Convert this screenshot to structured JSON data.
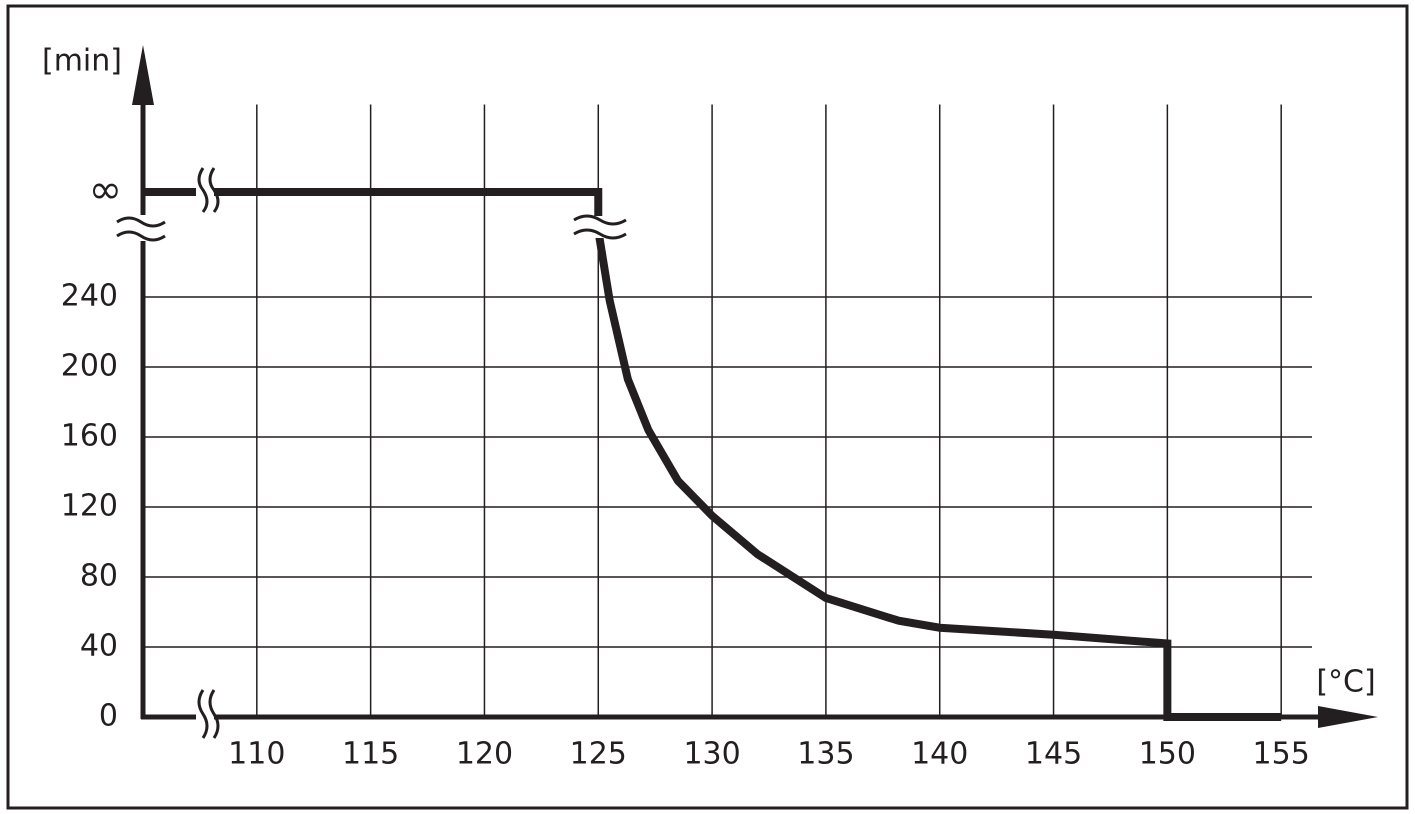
{
  "chart_data": {
    "type": "line",
    "y_label": "[min]",
    "x_label": "[°C]",
    "xlim": [
      105,
      160
    ],
    "ylim": [
      0,
      350
    ],
    "xticks": [
      110,
      115,
      120,
      125,
      130,
      135,
      140,
      145,
      150,
      155
    ],
    "yticks": [
      0,
      40,
      80,
      120,
      160,
      200,
      240,
      {
        "value": 300,
        "label": "∞"
      }
    ],
    "grid": true,
    "series": [
      {
        "color": "#231f20",
        "x": [
          105,
          125,
          125,
          125.5,
          126.3,
          127.2,
          128.5,
          130,
          132,
          135,
          138.2,
          140,
          145,
          150,
          150,
          155
        ],
        "values": [
          300,
          300,
          278,
          238,
          193,
          164,
          135,
          115,
          93,
          68,
          55,
          51,
          47,
          42,
          0,
          0
        ]
      }
    ]
  }
}
